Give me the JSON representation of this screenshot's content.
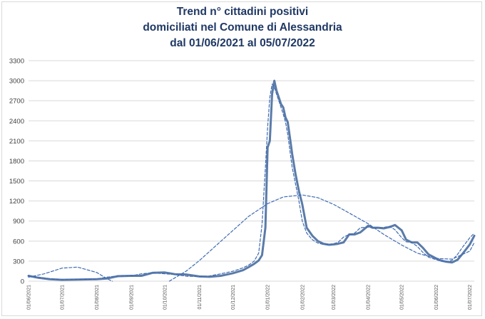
{
  "chart_data": {
    "type": "line",
    "title_lines": [
      "Trend n° cittadini positivi",
      "domiciliati nel Comune di Alessandria",
      "dal 01/06/2021 al 05/07/2022"
    ],
    "xlabel": "",
    "ylabel": "",
    "ylim": [
      0,
      3300
    ],
    "yticks": [
      0,
      300,
      600,
      900,
      1200,
      1500,
      1800,
      2100,
      2400,
      2700,
      3000,
      3300
    ],
    "xlim": [
      "2021-06-01",
      "2022-07-05"
    ],
    "xticks": [
      "01/06/2021",
      "01/07/2021",
      "01/08/2021",
      "01/09/2021",
      "01/10/2021",
      "01/11/2021",
      "01/12/2021",
      "01/01/2022",
      "01/02/2022",
      "01/03/2022",
      "01/04/2022",
      "01/05/2022",
      "01/06/2022",
      "01/07/2022"
    ],
    "grid": true,
    "legend": "none",
    "colors": {
      "series": "#5b7ba8",
      "trend": "#3f6cb5"
    },
    "series": [
      {
        "style": "solid",
        "x": [
          "2021-06-01",
          "2021-06-10",
          "2021-06-20",
          "2021-07-01",
          "2021-07-15",
          "2021-08-01",
          "2021-08-10",
          "2021-08-20",
          "2021-09-01",
          "2021-09-10",
          "2021-09-20",
          "2021-10-01",
          "2021-10-10",
          "2021-10-20",
          "2021-11-01",
          "2021-11-10",
          "2021-11-20",
          "2021-12-01",
          "2021-12-10",
          "2021-12-15",
          "2021-12-20",
          "2021-12-24",
          "2021-12-27",
          "2021-12-30",
          "2022-01-01",
          "2022-01-03",
          "2022-01-05",
          "2022-01-07",
          "2022-01-09",
          "2022-01-11",
          "2022-01-13",
          "2022-01-15",
          "2022-01-17",
          "2022-01-19",
          "2022-01-21",
          "2022-01-23",
          "2022-01-26",
          "2022-01-29",
          "2022-02-01",
          "2022-02-05",
          "2022-02-10",
          "2022-02-15",
          "2022-02-20",
          "2022-02-25",
          "2022-03-01",
          "2022-03-05",
          "2022-03-10",
          "2022-03-15",
          "2022-03-20",
          "2022-03-25",
          "2022-04-01",
          "2022-04-05",
          "2022-04-10",
          "2022-04-15",
          "2022-04-20",
          "2022-04-25",
          "2022-05-01",
          "2022-05-05",
          "2022-05-10",
          "2022-05-15",
          "2022-05-20",
          "2022-05-25",
          "2022-06-01",
          "2022-06-05",
          "2022-06-10",
          "2022-06-15",
          "2022-06-20",
          "2022-06-25",
          "2022-07-01",
          "2022-07-05"
        ],
        "values": [
          80,
          50,
          30,
          20,
          25,
          30,
          40,
          75,
          80,
          80,
          125,
          130,
          105,
          100,
          70,
          65,
          80,
          120,
          165,
          210,
          260,
          310,
          390,
          800,
          2000,
          2100,
          2800,
          3000,
          2850,
          2750,
          2650,
          2600,
          2450,
          2380,
          2150,
          1900,
          1600,
          1350,
          1150,
          800,
          680,
          600,
          560,
          545,
          550,
          560,
          580,
          700,
          700,
          730,
          830,
          800,
          800,
          790,
          810,
          840,
          760,
          620,
          580,
          580,
          500,
          400,
          340,
          310,
          290,
          280,
          320,
          420,
          550,
          680
        ]
      },
      {
        "style": "dashed",
        "x": [
          "2021-06-01",
          "2021-06-10",
          "2021-06-20",
          "2021-07-01",
          "2021-07-10",
          "2021-07-20",
          "2021-08-01",
          "2021-08-10",
          "2021-08-20",
          "2021-09-01",
          "2021-09-10",
          "2021-09-20",
          "2021-10-01",
          "2021-10-10",
          "2021-10-20",
          "2021-11-01",
          "2021-11-10",
          "2021-11-20",
          "2021-12-01",
          "2021-12-10",
          "2021-12-15",
          "2021-12-20",
          "2021-12-24",
          "2021-12-27",
          "2021-12-30",
          "2022-01-01",
          "2022-01-03",
          "2022-01-05",
          "2022-01-07",
          "2022-01-09",
          "2022-01-11",
          "2022-01-13",
          "2022-01-15",
          "2022-01-17",
          "2022-01-19",
          "2022-01-21",
          "2022-01-23",
          "2022-01-26",
          "2022-01-29",
          "2022-02-01",
          "2022-02-05",
          "2022-02-10",
          "2022-02-15",
          "2022-02-20",
          "2022-02-25",
          "2022-03-01",
          "2022-03-05",
          "2022-03-10",
          "2022-03-15",
          "2022-03-20",
          "2022-03-25",
          "2022-04-01",
          "2022-04-05",
          "2022-04-10",
          "2022-04-15",
          "2022-04-20",
          "2022-04-25",
          "2022-05-01",
          "2022-05-05",
          "2022-05-10",
          "2022-05-15",
          "2022-05-20",
          "2022-05-25",
          "2022-06-01",
          "2022-06-05",
          "2022-06-10",
          "2022-06-15",
          "2022-06-20",
          "2022-06-25",
          "2022-07-01",
          "2022-07-05"
        ],
        "values": [
          75,
          60,
          35,
          25,
          25,
          28,
          32,
          60,
          78,
          80,
          110,
          125,
          110,
          100,
          75,
          68,
          78,
          110,
          150,
          200,
          240,
          300,
          420,
          850,
          1700,
          2300,
          2750,
          2950,
          2900,
          2800,
          2700,
          2600,
          2500,
          2380,
          2200,
          1950,
          1700,
          1450,
          1200,
          900,
          720,
          620,
          570,
          550,
          550,
          560,
          580,
          660,
          700,
          720,
          800,
          810,
          800,
          795,
          805,
          820,
          770,
          650,
          590,
          580,
          520,
          430,
          360,
          320,
          300,
          290,
          310,
          400,
          520,
          650,
          720
        ]
      },
      {
        "style": "dashed",
        "x": [
          "2021-06-01",
          "2021-06-15",
          "2021-07-01",
          "2021-07-15",
          "2021-08-01",
          "2021-08-10",
          "2021-08-15"
        ],
        "values": [
          60,
          110,
          195,
          210,
          130,
          40,
          0
        ]
      },
      {
        "style": "dashed",
        "x": [
          "2021-10-05",
          "2021-10-20",
          "2021-11-01",
          "2021-11-15",
          "2021-12-01",
          "2021-12-15",
          "2022-01-01",
          "2022-01-15",
          "2022-02-01",
          "2022-02-15",
          "2022-03-01",
          "2022-03-15",
          "2022-04-01",
          "2022-04-15",
          "2022-05-01",
          "2022-05-15",
          "2022-06-01",
          "2022-06-15",
          "2022-07-01",
          "2022-07-05"
        ],
        "values": [
          0,
          150,
          310,
          520,
          760,
          970,
          1160,
          1260,
          1290,
          1250,
          1150,
          1020,
          860,
          700,
          540,
          420,
          340,
          330,
          450,
          580
        ]
      }
    ]
  }
}
